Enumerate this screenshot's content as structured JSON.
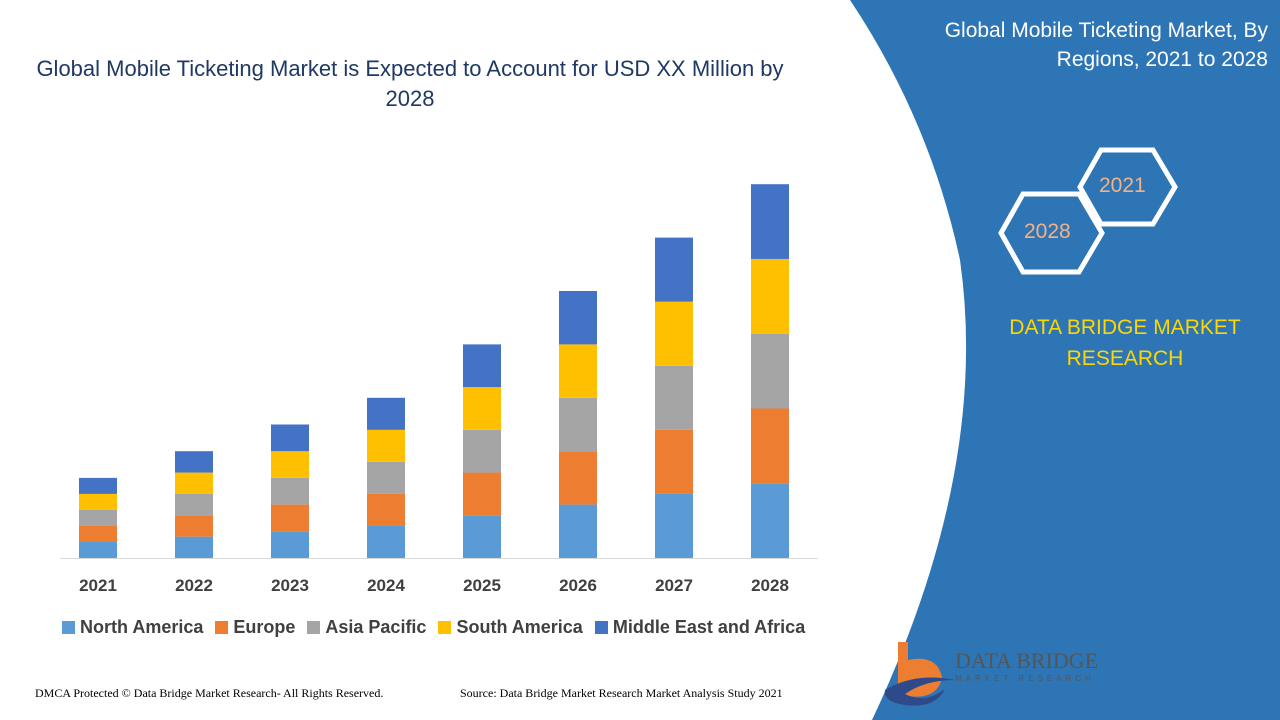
{
  "header": {
    "title": "Global Mobile Ticketing Market is Expected to Account for USD XX Million by 2028"
  },
  "side": {
    "title": "Global Mobile Ticketing Market, By Regions, 2021 to 2028",
    "hex_start": "2021",
    "hex_end": "2028",
    "brand": "DATA BRIDGE MARKET RESEARCH",
    "panel_color": "#2e75b6"
  },
  "logo": {
    "name": "DATA BRIDGE",
    "tagline": "MARKET RESEARCH"
  },
  "footer": {
    "left": "DMCA Protected © Data Bridge Market Research- All Rights Reserved.",
    "right": "Source: Data Bridge Market Research Market Analysis Study 2021"
  },
  "chart_data": {
    "type": "bar",
    "stacked": true,
    "title": "Global Mobile Ticketing Market is Expected to Account for USD XX Million by 2028",
    "categories": [
      "2021",
      "2022",
      "2023",
      "2024",
      "2025",
      "2026",
      "2027",
      "2028"
    ],
    "series": [
      {
        "name": "North America",
        "color": "#5b9bd5",
        "values": [
          3,
          4,
          5,
          6,
          8,
          10,
          12,
          14
        ]
      },
      {
        "name": "Europe",
        "color": "#ed7d31",
        "values": [
          3,
          4,
          5,
          6,
          8,
          10,
          12,
          14
        ]
      },
      {
        "name": "Asia Pacific",
        "color": "#a5a5a5",
        "values": [
          3,
          4,
          5,
          6,
          8,
          10,
          12,
          14
        ]
      },
      {
        "name": "South America",
        "color": "#ffc000",
        "values": [
          3,
          4,
          5,
          6,
          8,
          10,
          12,
          14
        ]
      },
      {
        "name": "Middle East and Africa",
        "color": "#4472c4",
        "values": [
          3,
          4,
          5,
          6,
          8,
          10,
          12,
          14
        ]
      }
    ],
    "ylim": [
      0,
      70
    ],
    "grid": false,
    "legend": "bottom"
  }
}
